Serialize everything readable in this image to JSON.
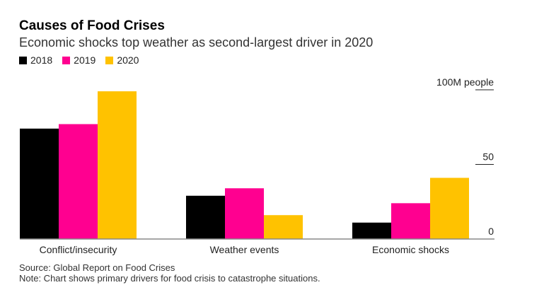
{
  "chart_data": {
    "type": "bar",
    "title": "Causes of Food Crises",
    "subtitle": "Economic shocks top weather as second-largest driver in 2020",
    "categories": [
      "Conflict/insecurity",
      "Weather events",
      "Economic shocks"
    ],
    "series": [
      {
        "name": "2018",
        "color": "#000000",
        "values": [
          74,
          29,
          11
        ]
      },
      {
        "name": "2019",
        "color": "#ff0090",
        "values": [
          77,
          34,
          24
        ]
      },
      {
        "name": "2020",
        "color": "#ffc200",
        "values": [
          99,
          16,
          41
        ]
      }
    ],
    "ylabel": "100M people",
    "yticks": [
      0,
      50,
      100
    ],
    "ytick_labels": [
      "0",
      "50",
      "100M people"
    ],
    "ylim": [
      0,
      100
    ],
    "legend": "top-left",
    "grid": false
  },
  "footer": {
    "source": "Source: Global Report on Food Crises",
    "note": "Note: Chart shows primary drivers for food crisis to catastrophe situations."
  }
}
